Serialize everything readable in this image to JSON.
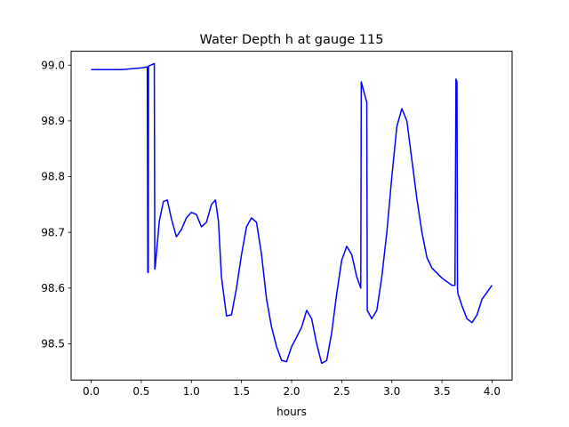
{
  "chart_data": {
    "type": "line",
    "title": "Water Depth h at gauge 115",
    "xlabel": "hours",
    "ylabel": "",
    "xlim": [
      -0.2,
      4.2
    ],
    "ylim": [
      98.435,
      99.025
    ],
    "xticks": [
      0.0,
      0.5,
      1.0,
      1.5,
      2.0,
      2.5,
      3.0,
      3.5,
      4.0
    ],
    "xtick_labels": [
      "0.0",
      "0.5",
      "1.0",
      "1.5",
      "2.0",
      "2.5",
      "3.0",
      "3.5",
      "4.0"
    ],
    "yticks": [
      98.5,
      98.6,
      98.7,
      98.8,
      98.9,
      99.0
    ],
    "ytick_labels": [
      "98.5",
      "98.6",
      "98.7",
      "98.8",
      "98.9",
      "99.0"
    ],
    "grid": false,
    "series": [
      {
        "color": "#0000ff",
        "x": [
          0.0,
          0.3,
          0.5,
          0.56,
          0.565,
          0.57,
          0.572,
          0.58,
          0.63,
          0.635,
          0.64,
          0.65,
          0.68,
          0.72,
          0.76,
          0.8,
          0.85,
          0.9,
          0.95,
          1.0,
          1.05,
          1.1,
          1.15,
          1.2,
          1.24,
          1.27,
          1.3,
          1.35,
          1.4,
          1.45,
          1.5,
          1.55,
          1.6,
          1.65,
          1.7,
          1.75,
          1.8,
          1.85,
          1.9,
          1.95,
          2.0,
          2.05,
          2.1,
          2.15,
          2.2,
          2.25,
          2.3,
          2.35,
          2.4,
          2.45,
          2.5,
          2.55,
          2.6,
          2.65,
          2.69,
          2.695,
          2.75,
          2.755,
          2.8,
          2.85,
          2.9,
          2.95,
          3.0,
          3.05,
          3.1,
          3.15,
          3.2,
          3.25,
          3.3,
          3.35,
          3.4,
          3.5,
          3.6,
          3.63,
          3.64,
          3.65,
          3.655,
          3.66,
          3.7,
          3.75,
          3.8,
          3.85,
          3.9,
          4.0
        ],
        "y": [
          98.992,
          98.992,
          98.995,
          98.997,
          98.628,
          98.628,
          98.998,
          98.999,
          99.003,
          98.634,
          98.64,
          98.66,
          98.72,
          98.755,
          98.758,
          98.725,
          98.692,
          98.705,
          98.726,
          98.736,
          98.732,
          98.71,
          98.718,
          98.75,
          98.758,
          98.72,
          98.62,
          98.55,
          98.552,
          98.6,
          98.66,
          98.71,
          98.726,
          98.718,
          98.66,
          98.58,
          98.53,
          98.495,
          98.47,
          98.468,
          98.495,
          98.512,
          98.53,
          98.56,
          98.545,
          98.5,
          98.465,
          98.47,
          98.52,
          98.59,
          98.65,
          98.675,
          98.66,
          98.62,
          98.6,
          98.97,
          98.933,
          98.56,
          98.545,
          98.56,
          98.62,
          98.7,
          98.8,
          98.89,
          98.922,
          98.9,
          98.83,
          98.76,
          98.7,
          98.655,
          98.636,
          98.618,
          98.605,
          98.605,
          98.975,
          98.97,
          98.6,
          98.59,
          98.568,
          98.545,
          98.538,
          98.552,
          98.58,
          98.605
        ]
      }
    ]
  }
}
